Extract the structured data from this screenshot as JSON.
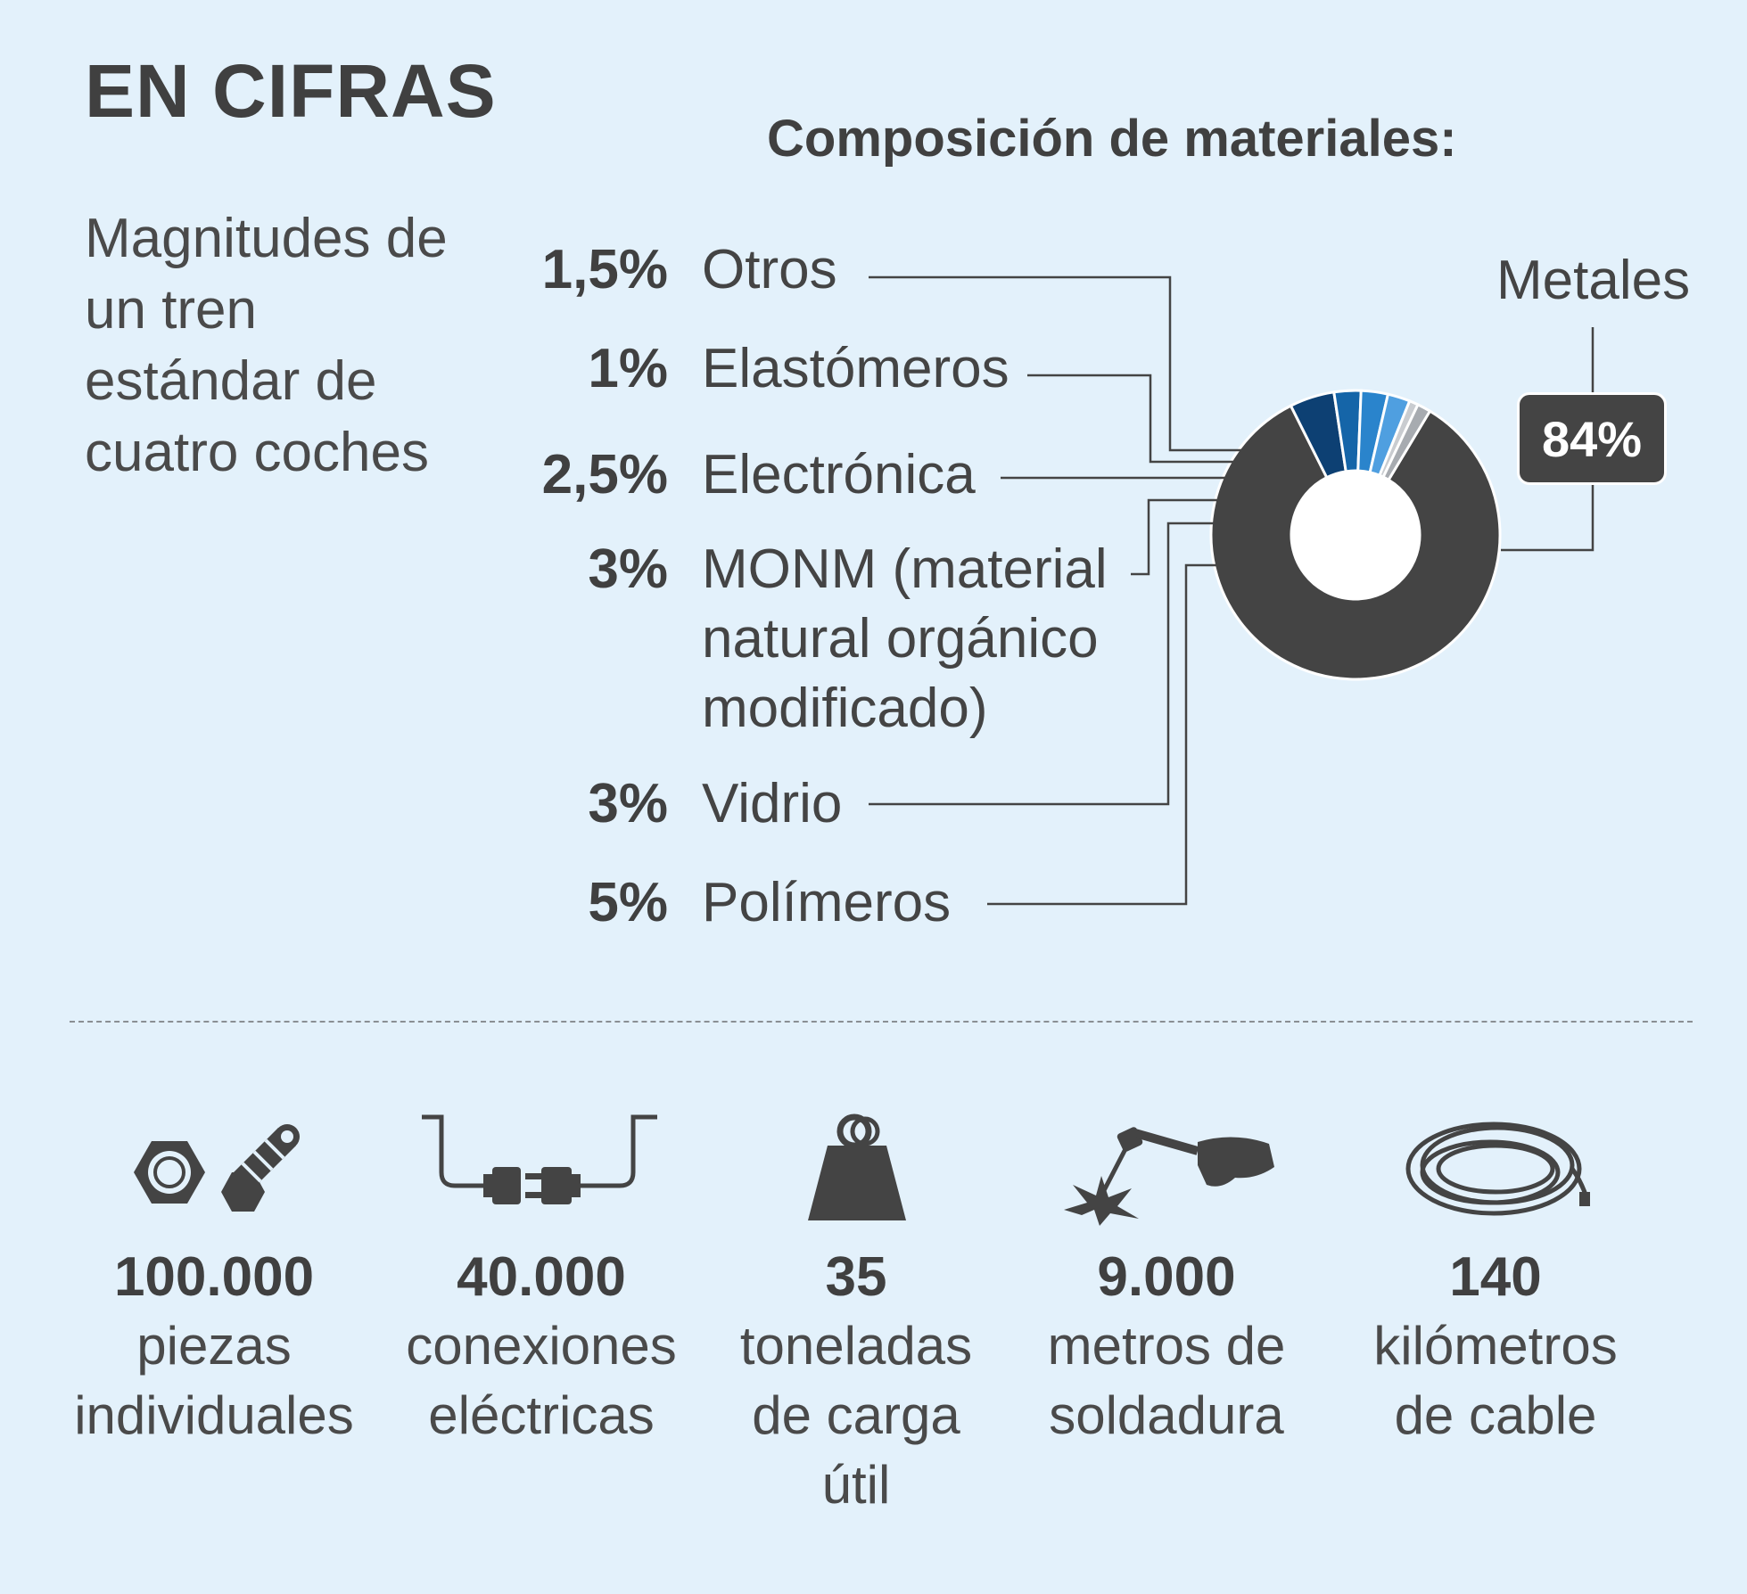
{
  "header": {
    "title": "EN CIFRAS",
    "subtitle": "Magnitudes de un tren estándar de cuatro coches"
  },
  "chart_data": {
    "type": "pie",
    "title": "Composición de materiales:",
    "series": [
      {
        "name": "Metales",
        "label": "84%",
        "value": 84,
        "color": "#444444"
      },
      {
        "name": "Polímeros",
        "label": "5%",
        "value": 5,
        "color": "#0d4073"
      },
      {
        "name": "Vidrio",
        "label": "3%",
        "value": 3,
        "color": "#1565a8"
      },
      {
        "name": "MONM (material natural orgánico modificado)",
        "label": "3%",
        "value": 3,
        "color": "#2a84cc"
      },
      {
        "name": "Electrónica",
        "label": "2,5%",
        "value": 2.5,
        "color": "#4f9fe0"
      },
      {
        "name": "Elastómeros",
        "label": "1%",
        "value": 1,
        "color": "#c9ccd0"
      },
      {
        "name": "Otros",
        "label": "1,5%",
        "value": 1.5,
        "color": "#a7abb0"
      }
    ]
  },
  "facts": [
    {
      "icon": "nut-bolt-icon",
      "number": "100.000",
      "text": "piezas\nindividuales"
    },
    {
      "icon": "electrical-plug-icon",
      "number": "40.000",
      "text": "conexiones\neléctricas"
    },
    {
      "icon": "weight-icon",
      "number": "35",
      "text": "toneladas\nde carga\nútil"
    },
    {
      "icon": "welding-torch-icon",
      "number": "9.000",
      "text": "metros de\nsoldadura"
    },
    {
      "icon": "cable-coil-icon",
      "number": "140",
      "text": "kilómetros\nde cable"
    }
  ]
}
